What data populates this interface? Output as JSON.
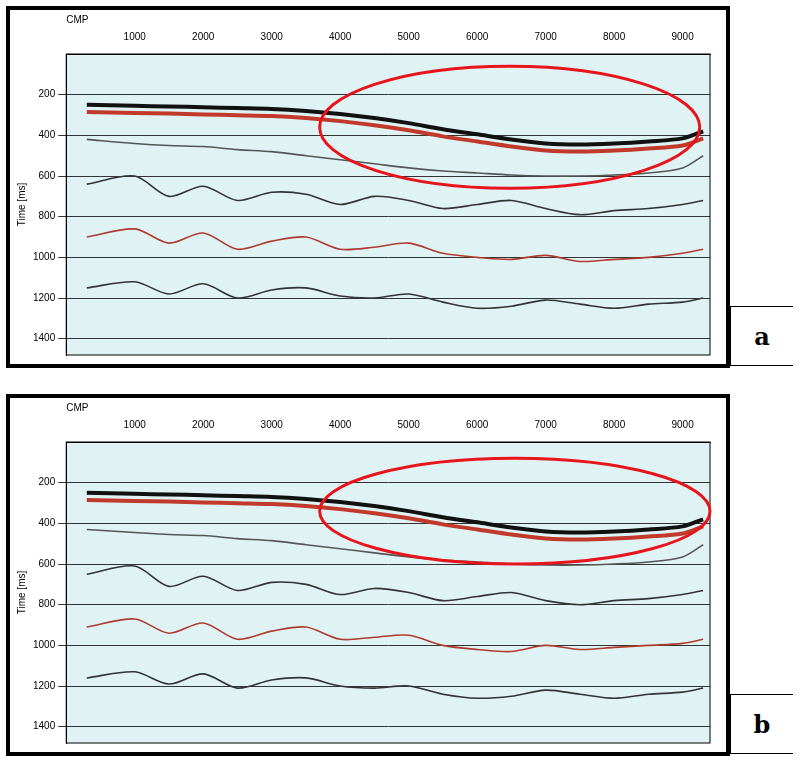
{
  "chart_data": [
    {
      "type": "line",
      "panel": "a",
      "x_label": "CMP",
      "y_label": "Time [ms]",
      "x": [
        300,
        1000,
        1500,
        2000,
        2500,
        3000,
        3500,
        4000,
        4500,
        5000,
        5500,
        6000,
        6500,
        7000,
        7500,
        8000,
        8500,
        9000,
        9300
      ],
      "xlim": [
        0,
        9400
      ],
      "xticks": [
        1000,
        2000,
        3000,
        4000,
        5000,
        6000,
        7000,
        8000,
        9000
      ],
      "ylim": [
        0,
        1480
      ],
      "yticks": [
        200,
        400,
        600,
        800,
        1000,
        1200,
        1400
      ],
      "grid": true,
      "series": [
        {
          "color": "#111111",
          "values": [
            250,
            255,
            258,
            262,
            266,
            270,
            280,
            295,
            315,
            340,
            370,
            395,
            420,
            440,
            445,
            440,
            430,
            415,
            380
          ]
        },
        {
          "color": "#c0392b",
          "values": [
            285,
            290,
            293,
            297,
            301,
            305,
            315,
            330,
            350,
            375,
            405,
            430,
            455,
            475,
            480,
            475,
            465,
            450,
            415
          ]
        },
        {
          "color": "#555555",
          "values": [
            420,
            440,
            450,
            455,
            470,
            480,
            500,
            520,
            540,
            560,
            575,
            585,
            595,
            600,
            600,
            595,
            585,
            560,
            500
          ]
        },
        {
          "color": "#333333",
          "values": [
            640,
            600,
            700,
            650,
            720,
            680,
            690,
            740,
            700,
            720,
            760,
            740,
            720,
            760,
            790,
            770,
            760,
            740,
            720
          ]
        },
        {
          "color": "#b03a2e",
          "values": [
            900,
            860,
            930,
            880,
            960,
            920,
            900,
            960,
            950,
            930,
            980,
            1000,
            1010,
            990,
            1020,
            1010,
            1000,
            980,
            960
          ]
        },
        {
          "color": "#333333",
          "values": [
            1150,
            1120,
            1180,
            1130,
            1200,
            1160,
            1150,
            1190,
            1200,
            1180,
            1220,
            1250,
            1240,
            1210,
            1230,
            1250,
            1230,
            1220,
            1200
          ]
        }
      ],
      "annotations": [
        {
          "shape": "ellipse",
          "color": "#e8141b",
          "xlim": [
            3700,
            9250
          ],
          "ylim": [
            60,
            660
          ]
        }
      ]
    },
    {
      "type": "line",
      "panel": "b",
      "x_label": "CMP",
      "y_label": "Time [ms]",
      "x": [
        300,
        1000,
        1500,
        2000,
        2500,
        3000,
        3500,
        4000,
        4500,
        5000,
        5500,
        6000,
        6500,
        7000,
        7500,
        8000,
        8500,
        9000,
        9300
      ],
      "xlim": [
        0,
        9400
      ],
      "xticks": [
        1000,
        2000,
        3000,
        4000,
        5000,
        6000,
        7000,
        8000,
        9000
      ],
      "ylim": [
        0,
        1480
      ],
      "yticks": [
        200,
        400,
        600,
        800,
        1000,
        1200,
        1400
      ],
      "grid": true,
      "series": [
        {
          "color": "#111111",
          "values": [
            250,
            255,
            258,
            262,
            266,
            270,
            280,
            295,
            315,
            340,
            370,
            395,
            420,
            440,
            445,
            440,
            430,
            415,
            380
          ]
        },
        {
          "color": "#c0392b",
          "values": [
            285,
            290,
            293,
            297,
            301,
            305,
            315,
            330,
            350,
            375,
            405,
            430,
            455,
            475,
            480,
            475,
            465,
            450,
            415
          ]
        },
        {
          "color": "#555555",
          "values": [
            430,
            445,
            455,
            460,
            475,
            485,
            505,
            525,
            545,
            565,
            580,
            590,
            600,
            605,
            605,
            600,
            590,
            565,
            505
          ]
        },
        {
          "color": "#333333",
          "values": [
            650,
            610,
            710,
            660,
            730,
            690,
            700,
            750,
            720,
            740,
            780,
            760,
            740,
            780,
            800,
            780,
            770,
            750,
            730
          ]
        },
        {
          "color": "#b03a2e",
          "values": [
            910,
            870,
            940,
            890,
            970,
            930,
            910,
            970,
            960,
            950,
            1000,
            1020,
            1030,
            1000,
            1020,
            1010,
            1000,
            990,
            970
          ]
        },
        {
          "color": "#333333",
          "values": [
            1160,
            1130,
            1190,
            1140,
            1210,
            1170,
            1160,
            1200,
            1210,
            1200,
            1240,
            1260,
            1250,
            1220,
            1240,
            1260,
            1240,
            1230,
            1210
          ]
        }
      ],
      "annotations": [
        {
          "shape": "ellipse",
          "color": "#e8141b",
          "xlim": [
            3700,
            9400
          ],
          "ylim": [
            80,
            600
          ]
        }
      ]
    }
  ]
}
